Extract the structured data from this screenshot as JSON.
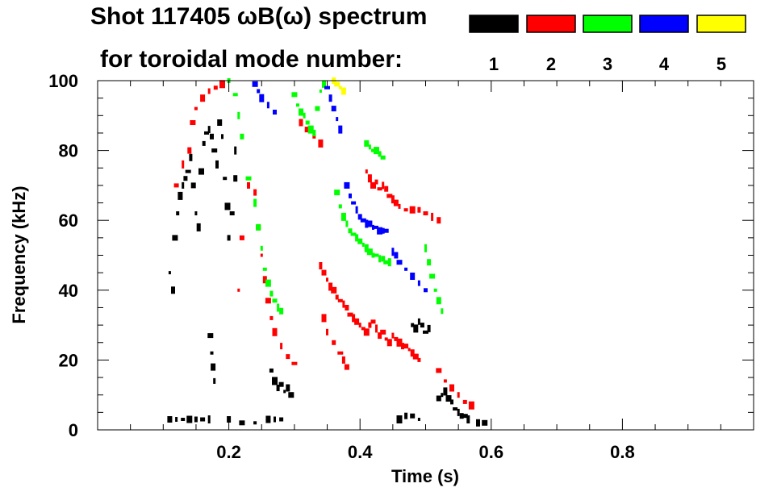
{
  "title_line1": "Shot 117405 ωB(ω) spectrum",
  "title_line2": "for toroidal mode number:",
  "chart_data": {
    "type": "scatter",
    "xlabel": "Time (s)",
    "ylabel": "Frequency (kHz)",
    "xlim": [
      0.0,
      1.0
    ],
    "ylim": [
      0,
      100
    ],
    "x_ticks": [
      0.2,
      0.4,
      0.6,
      0.8
    ],
    "x_tick_labels": [
      "0.2",
      "0.4",
      "0.6",
      "0.8"
    ],
    "y_ticks": [
      0,
      20,
      40,
      60,
      80,
      100
    ],
    "y_tick_labels": [
      "0",
      "20",
      "40",
      "60",
      "80",
      "100"
    ],
    "legend": {
      "placement": "top",
      "entries": [
        {
          "label": "1",
          "color": "#000000"
        },
        {
          "label": "2",
          "color": "#ff0000"
        },
        {
          "label": "3",
          "color": "#00ff00"
        },
        {
          "label": "4",
          "color": "#0000ff"
        },
        {
          "label": "5",
          "color": "#ffff00"
        }
      ]
    },
    "series": [
      {
        "name": "1",
        "color": "#000000",
        "points": [
          [
            0.11,
            45
          ],
          [
            0.115,
            40
          ],
          [
            0.118,
            55
          ],
          [
            0.122,
            62
          ],
          [
            0.126,
            67
          ],
          [
            0.13,
            70
          ],
          [
            0.134,
            72
          ],
          [
            0.138,
            74
          ],
          [
            0.142,
            78
          ],
          [
            0.146,
            70
          ],
          [
            0.15,
            62
          ],
          [
            0.154,
            58
          ],
          [
            0.158,
            74
          ],
          [
            0.162,
            82
          ],
          [
            0.166,
            85
          ],
          [
            0.17,
            86
          ],
          [
            0.174,
            84
          ],
          [
            0.178,
            80
          ],
          [
            0.182,
            76
          ],
          [
            0.186,
            88
          ],
          [
            0.19,
            84
          ],
          [
            0.194,
            72
          ],
          [
            0.198,
            64
          ],
          [
            0.2,
            55
          ],
          [
            0.205,
            62
          ],
          [
            0.21,
            80
          ],
          [
            0.21,
            72
          ],
          [
            0.172,
            27
          ],
          [
            0.174,
            22
          ],
          [
            0.176,
            18
          ],
          [
            0.178,
            14
          ],
          [
            0.265,
            17
          ],
          [
            0.27,
            14
          ],
          [
            0.275,
            12
          ],
          [
            0.28,
            13
          ],
          [
            0.285,
            11
          ],
          [
            0.29,
            12
          ],
          [
            0.295,
            10
          ],
          [
            0.48,
            30
          ],
          [
            0.485,
            29
          ],
          [
            0.49,
            31
          ],
          [
            0.495,
            30
          ],
          [
            0.5,
            28
          ],
          [
            0.505,
            29
          ],
          [
            0.52,
            9
          ],
          [
            0.525,
            10
          ],
          [
            0.53,
            11
          ],
          [
            0.535,
            9
          ],
          [
            0.54,
            8
          ],
          [
            0.545,
            6
          ],
          [
            0.55,
            5
          ],
          [
            0.555,
            4
          ],
          [
            0.56,
            4
          ],
          [
            0.565,
            3
          ],
          [
            0.11,
            3
          ],
          [
            0.12,
            3
          ],
          [
            0.13,
            3
          ],
          [
            0.14,
            3
          ],
          [
            0.15,
            3
          ],
          [
            0.16,
            3
          ],
          [
            0.17,
            3
          ],
          [
            0.2,
            3
          ],
          [
            0.22,
            2
          ],
          [
            0.24,
            2
          ],
          [
            0.26,
            3
          ],
          [
            0.27,
            3
          ],
          [
            0.28,
            3
          ],
          [
            0.46,
            3
          ],
          [
            0.47,
            4
          ],
          [
            0.48,
            4
          ],
          [
            0.49,
            3
          ],
          [
            0.58,
            2
          ],
          [
            0.59,
            2
          ]
        ]
      },
      {
        "name": "2",
        "color": "#ff0000",
        "points": [
          [
            0.12,
            70
          ],
          [
            0.13,
            76
          ],
          [
            0.14,
            80
          ],
          [
            0.145,
            88
          ],
          [
            0.15,
            92
          ],
          [
            0.16,
            95
          ],
          [
            0.17,
            97
          ],
          [
            0.18,
            98
          ],
          [
            0.19,
            99
          ],
          [
            0.24,
            68
          ],
          [
            0.245,
            58
          ],
          [
            0.25,
            50
          ],
          [
            0.255,
            43
          ],
          [
            0.26,
            37
          ],
          [
            0.265,
            32
          ],
          [
            0.27,
            28
          ],
          [
            0.28,
            24
          ],
          [
            0.29,
            21
          ],
          [
            0.3,
            19
          ],
          [
            0.34,
            47
          ],
          [
            0.345,
            45
          ],
          [
            0.35,
            43
          ],
          [
            0.355,
            41
          ],
          [
            0.36,
            40
          ],
          [
            0.365,
            38
          ],
          [
            0.37,
            37
          ],
          [
            0.375,
            36
          ],
          [
            0.38,
            35
          ],
          [
            0.385,
            33
          ],
          [
            0.39,
            32
          ],
          [
            0.395,
            31
          ],
          [
            0.4,
            30
          ],
          [
            0.405,
            29
          ],
          [
            0.41,
            28
          ],
          [
            0.415,
            30
          ],
          [
            0.42,
            31
          ],
          [
            0.425,
            29
          ],
          [
            0.43,
            27
          ],
          [
            0.435,
            28
          ],
          [
            0.44,
            26
          ],
          [
            0.445,
            25
          ],
          [
            0.45,
            27
          ],
          [
            0.455,
            26
          ],
          [
            0.46,
            25
          ],
          [
            0.465,
            24
          ],
          [
            0.47,
            24
          ],
          [
            0.475,
            23
          ],
          [
            0.48,
            22
          ],
          [
            0.485,
            21
          ],
          [
            0.49,
            20
          ],
          [
            0.345,
            32
          ],
          [
            0.35,
            28
          ],
          [
            0.36,
            25
          ],
          [
            0.37,
            22
          ],
          [
            0.375,
            20
          ],
          [
            0.38,
            18
          ],
          [
            0.41,
            74
          ],
          [
            0.415,
            72
          ],
          [
            0.42,
            70
          ],
          [
            0.425,
            71
          ],
          [
            0.43,
            69
          ],
          [
            0.435,
            70
          ],
          [
            0.44,
            69
          ],
          [
            0.445,
            67
          ],
          [
            0.45,
            66
          ],
          [
            0.455,
            65
          ],
          [
            0.46,
            64
          ],
          [
            0.47,
            63
          ],
          [
            0.48,
            63
          ],
          [
            0.49,
            63
          ],
          [
            0.5,
            62
          ],
          [
            0.51,
            61
          ],
          [
            0.52,
            60
          ],
          [
            0.52,
            17
          ],
          [
            0.53,
            14
          ],
          [
            0.54,
            12
          ],
          [
            0.55,
            10
          ],
          [
            0.56,
            8
          ],
          [
            0.57,
            7
          ],
          [
            0.23,
            70
          ],
          [
            0.22,
            55
          ],
          [
            0.215,
            40
          ],
          [
            0.31,
            88
          ],
          [
            0.32,
            86
          ],
          [
            0.33,
            84
          ],
          [
            0.34,
            82
          ]
        ]
      },
      {
        "name": "3",
        "color": "#00ff00",
        "points": [
          [
            0.2,
            100
          ],
          [
            0.21,
            96
          ],
          [
            0.215,
            90
          ],
          [
            0.22,
            84
          ],
          [
            0.23,
            72
          ],
          [
            0.24,
            65
          ],
          [
            0.245,
            58
          ],
          [
            0.25,
            52
          ],
          [
            0.255,
            46
          ],
          [
            0.26,
            42
          ],
          [
            0.265,
            39
          ],
          [
            0.27,
            37
          ],
          [
            0.275,
            35
          ],
          [
            0.28,
            34
          ],
          [
            0.3,
            96
          ],
          [
            0.305,
            93
          ],
          [
            0.31,
            91
          ],
          [
            0.315,
            90
          ],
          [
            0.32,
            88
          ],
          [
            0.325,
            86
          ],
          [
            0.33,
            85
          ],
          [
            0.335,
            92
          ],
          [
            0.34,
            97
          ],
          [
            0.345,
            99
          ],
          [
            0.365,
            68
          ],
          [
            0.37,
            64
          ],
          [
            0.375,
            61
          ],
          [
            0.38,
            59
          ],
          [
            0.385,
            57
          ],
          [
            0.39,
            56
          ],
          [
            0.395,
            55
          ],
          [
            0.4,
            54
          ],
          [
            0.405,
            53
          ],
          [
            0.41,
            52
          ],
          [
            0.415,
            51
          ],
          [
            0.42,
            50
          ],
          [
            0.425,
            50
          ],
          [
            0.43,
            49
          ],
          [
            0.435,
            49
          ],
          [
            0.44,
            48
          ],
          [
            0.445,
            48
          ],
          [
            0.41,
            82
          ],
          [
            0.415,
            81
          ],
          [
            0.42,
            80
          ],
          [
            0.425,
            80
          ],
          [
            0.43,
            79
          ],
          [
            0.435,
            78
          ],
          [
            0.5,
            52
          ],
          [
            0.505,
            48
          ],
          [
            0.51,
            44
          ],
          [
            0.515,
            40
          ],
          [
            0.52,
            37
          ],
          [
            0.525,
            34
          ]
        ]
      },
      {
        "name": "4",
        "color": "#0000ff",
        "points": [
          [
            0.24,
            99
          ],
          [
            0.245,
            97
          ],
          [
            0.25,
            95
          ],
          [
            0.26,
            93
          ],
          [
            0.27,
            91
          ],
          [
            0.35,
            98
          ],
          [
            0.355,
            95
          ],
          [
            0.36,
            92
          ],
          [
            0.365,
            89
          ],
          [
            0.37,
            86
          ],
          [
            0.38,
            70
          ],
          [
            0.385,
            67
          ],
          [
            0.39,
            65
          ],
          [
            0.395,
            63
          ],
          [
            0.4,
            61
          ],
          [
            0.405,
            60
          ],
          [
            0.41,
            59
          ],
          [
            0.415,
            59
          ],
          [
            0.42,
            58
          ],
          [
            0.425,
            58
          ],
          [
            0.43,
            57
          ],
          [
            0.435,
            57
          ],
          [
            0.44,
            57
          ],
          [
            0.45,
            51
          ],
          [
            0.455,
            50
          ],
          [
            0.46,
            48
          ],
          [
            0.47,
            46
          ],
          [
            0.48,
            44
          ],
          [
            0.49,
            42
          ],
          [
            0.5,
            40
          ]
        ]
      },
      {
        "name": "5",
        "color": "#ffff00",
        "points": [
          [
            0.36,
            100
          ],
          [
            0.365,
            99
          ],
          [
            0.37,
            98
          ],
          [
            0.375,
            97
          ]
        ]
      }
    ]
  }
}
